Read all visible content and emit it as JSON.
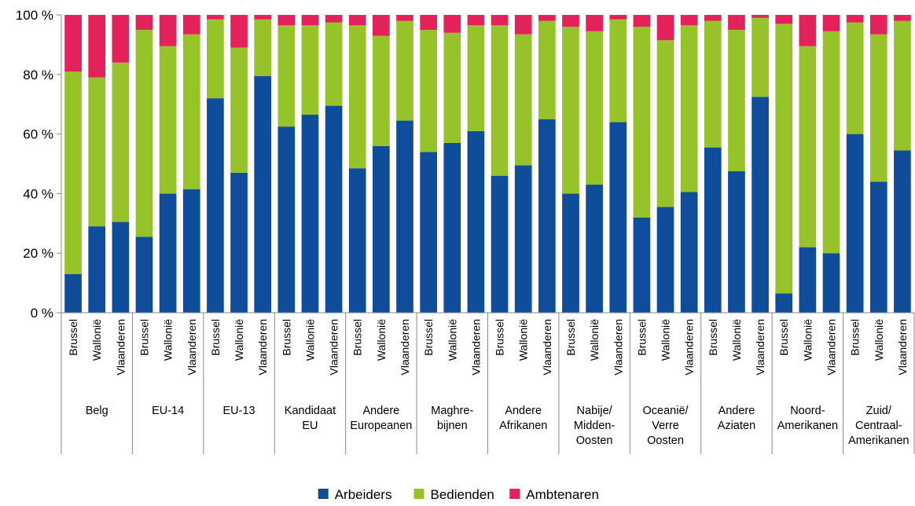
{
  "chart_data": {
    "type": "bar",
    "stacked": true,
    "title": "",
    "xlabel": "",
    "ylabel": "",
    "ylim": [
      0,
      100
    ],
    "y_ticks": [
      "0 %",
      "20 %",
      "40 %",
      "60 %",
      "80 %",
      "100 %"
    ],
    "y_tick_values": [
      0,
      20,
      40,
      60,
      80,
      100
    ],
    "grid": false,
    "legend_position": "bottom",
    "sub_categories": [
      "Brussel",
      "Wallonië",
      "Vlaanderen"
    ],
    "groups": [
      {
        "label_lines": [
          "Belg"
        ]
      },
      {
        "label_lines": [
          "EU-14"
        ]
      },
      {
        "label_lines": [
          "EU-13"
        ]
      },
      {
        "label_lines": [
          "Kandidaat",
          "EU"
        ]
      },
      {
        "label_lines": [
          "Andere",
          "Europeanen"
        ]
      },
      {
        "label_lines": [
          "Maghre-",
          "bijnen"
        ]
      },
      {
        "label_lines": [
          "Andere",
          "Afrikanen"
        ]
      },
      {
        "label_lines": [
          "Nabije/",
          "Midden-",
          "Oosten"
        ]
      },
      {
        "label_lines": [
          "Oceanië/",
          "Verre",
          "Oosten"
        ]
      },
      {
        "label_lines": [
          "Andere",
          "Aziaten"
        ]
      },
      {
        "label_lines": [
          "Noord-",
          "Amerikanen"
        ]
      },
      {
        "label_lines": [
          "Zuid/",
          "Centraal-",
          "Amerikanen"
        ]
      }
    ],
    "series": [
      {
        "name": "Arbeiders",
        "color": "#0f4c9a",
        "values": [
          13,
          29,
          30.5,
          25.5,
          40,
          41.5,
          72,
          47,
          79.5,
          62.5,
          66.5,
          69.5,
          48.5,
          56,
          64.5,
          54,
          57,
          61,
          46,
          49.5,
          65,
          40,
          43,
          64,
          32,
          35.5,
          40.5,
          55.5,
          47.5,
          72.5,
          6.5,
          22,
          20,
          60,
          44,
          54.5
        ]
      },
      {
        "name": "Bedienden",
        "color": "#96c32a",
        "values": [
          68,
          50,
          53.5,
          69.5,
          49.5,
          52,
          26.5,
          42,
          19,
          34,
          30,
          28,
          48,
          37,
          33.5,
          41,
          37,
          35.5,
          50.5,
          44,
          33,
          56,
          51.5,
          34.5,
          64,
          56,
          56,
          42.5,
          47.5,
          26.5,
          90.5,
          67.5,
          74.5,
          37.5,
          49.5,
          43.5
        ]
      },
      {
        "name": "Ambtenaren",
        "color": "#e3225c",
        "values": [
          19,
          21,
          16,
          5,
          10.5,
          6.5,
          1.5,
          11,
          1.5,
          3.5,
          3.5,
          2.5,
          3.5,
          7,
          2,
          5,
          6,
          3.5,
          3.5,
          6.5,
          2,
          4,
          5.5,
          1.5,
          4,
          8.5,
          3.5,
          2,
          5,
          1,
          3,
          10.5,
          5.5,
          2.5,
          6.5,
          2
        ]
      }
    ]
  }
}
